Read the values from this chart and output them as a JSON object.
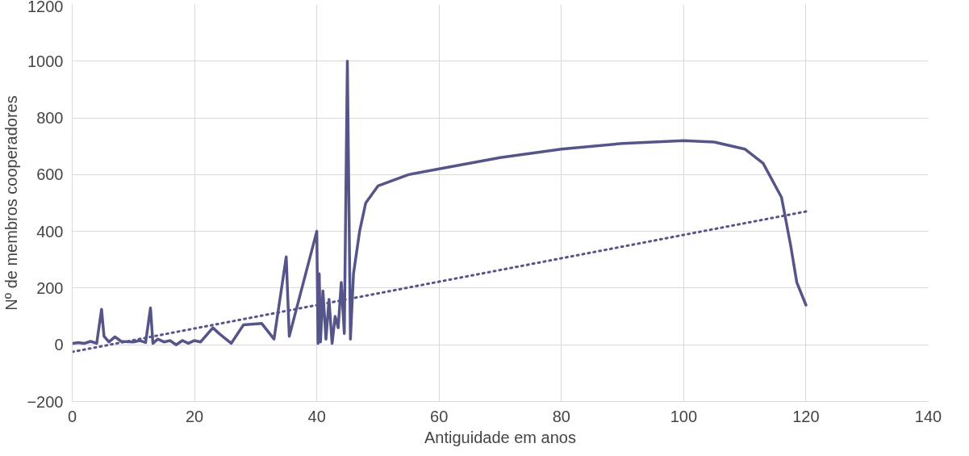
{
  "chart_data": {
    "type": "line",
    "xlabel": "Antiguidade em anos",
    "ylabel": "Nº de membros cooperadores",
    "xlim": [
      0,
      140
    ],
    "xticks": [
      0,
      20,
      40,
      60,
      80,
      100,
      120,
      140
    ],
    "ylim": [
      -200,
      1200
    ],
    "yticks": [
      -200,
      0,
      200,
      400,
      600,
      800,
      1000,
      1200
    ],
    "grid": true,
    "series": [
      {
        "color": "#565589",
        "line_style": "solid",
        "x": [
          0,
          1,
          2,
          3,
          4,
          4.8,
          5.2,
          6,
          7,
          8,
          10,
          11,
          12,
          12.8,
          13.2,
          14,
          15,
          16,
          17,
          18,
          19,
          20,
          21,
          23,
          24,
          26,
          28,
          31,
          33,
          35,
          35.5,
          40,
          40.2,
          40.4,
          40.6,
          41,
          41.5,
          42,
          42.5,
          43,
          43.5,
          44,
          44.5,
          45,
          45.5,
          46,
          47,
          48,
          50,
          55,
          60,
          70,
          80,
          90,
          100,
          105,
          110,
          113,
          116,
          117.5,
          118.5,
          120
        ],
        "values": [
          5,
          8,
          5,
          12,
          5,
          125,
          30,
          10,
          28,
          12,
          10,
          15,
          8,
          130,
          5,
          20,
          10,
          15,
          0,
          15,
          5,
          15,
          10,
          60,
          40,
          5,
          70,
          75,
          20,
          310,
          30,
          400,
          5,
          250,
          10,
          190,
          20,
          160,
          5,
          100,
          60,
          220,
          40,
          1000,
          20,
          250,
          400,
          500,
          560,
          600,
          620,
          660,
          690,
          710,
          720,
          715,
          690,
          640,
          520,
          350,
          220,
          140
        ]
      },
      {
        "type": "line",
        "color": "#565589",
        "line_style": "dotted",
        "x": [
          0,
          120
        ],
        "values": [
          -25,
          470
        ]
      }
    ]
  }
}
